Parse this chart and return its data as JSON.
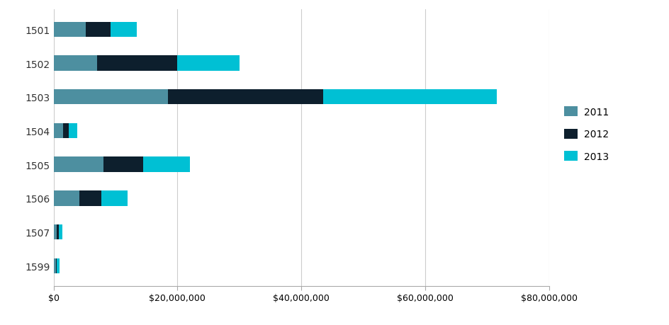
{
  "categories": [
    "1501",
    "1502",
    "1503",
    "1504",
    "1505",
    "1506",
    "1507",
    "1599"
  ],
  "series": {
    "2011": [
      5200000,
      7000000,
      18500000,
      1500000,
      8000000,
      4200000,
      500000,
      400000
    ],
    "2012": [
      4000000,
      13000000,
      25000000,
      900000,
      6500000,
      3500000,
      400000,
      150000
    ],
    "2013": [
      4200000,
      10000000,
      28000000,
      1400000,
      7500000,
      4300000,
      500000,
      400000
    ]
  },
  "colors": {
    "2011": "#4d8fa0",
    "2012": "#0d1f2d",
    "2013": "#00c0d4"
  },
  "legend_labels": [
    "2011",
    "2012",
    "2013"
  ],
  "xlim": [
    0,
    80000000
  ],
  "xticks": [
    0,
    20000000,
    40000000,
    60000000,
    80000000
  ],
  "background_color": "#ffffff",
  "bar_height": 0.45,
  "grid_color": "#cccccc",
  "figsize": [
    9.45,
    4.6
  ],
  "dpi": 100
}
